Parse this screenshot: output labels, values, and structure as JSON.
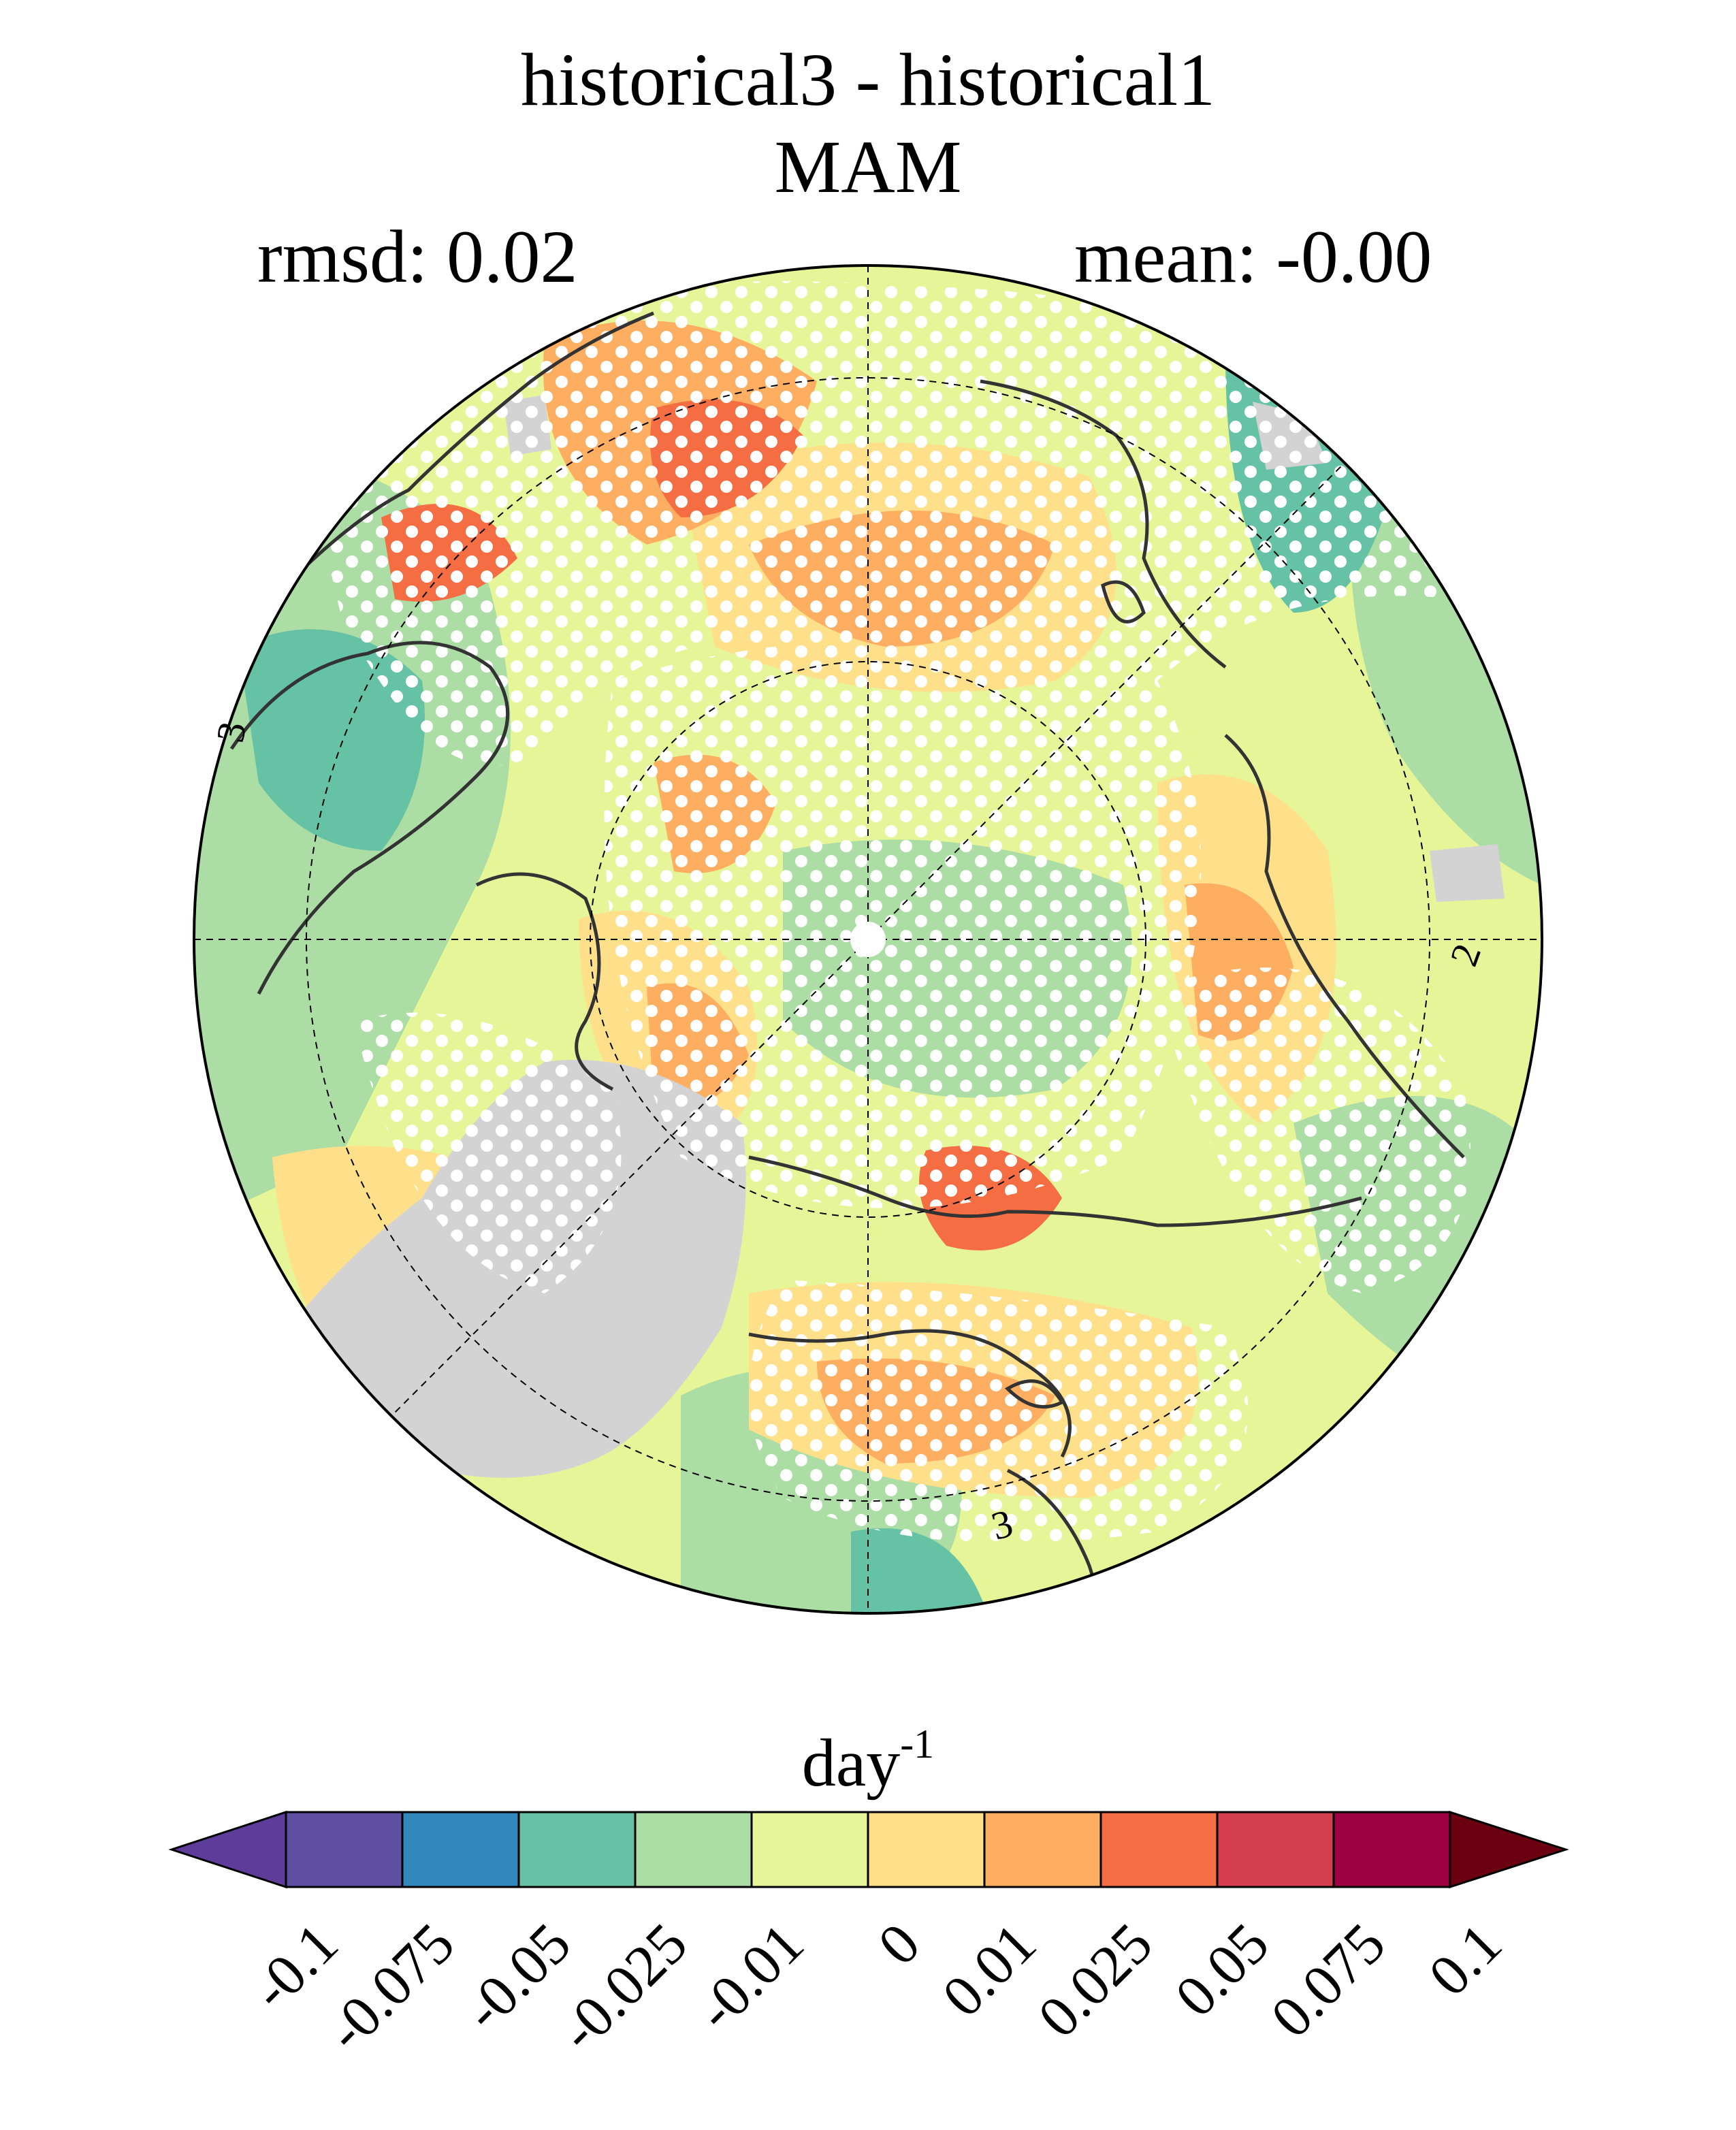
{
  "title": "historical3 - historical1",
  "season": "MAM",
  "rmsd_label": "rmsd: 0.02",
  "mean_label": "mean: -0.00",
  "colorbar": {
    "units": "day",
    "units_exponent": "-1",
    "ticks": [
      "-0.1",
      "-0.075",
      "-0.05",
      "-0.025",
      "-0.01",
      "0",
      "0.01",
      "0.025",
      "0.05",
      "0.075",
      "0.1"
    ],
    "colors": [
      "#5e3c99",
      "#5e4fa2",
      "#3288bd",
      "#66c2a5",
      "#abdda4",
      "#e6f598",
      "#fee08b",
      "#fdae61",
      "#f46d43",
      "#d53e4f",
      "#9e0142",
      "#6a0010"
    ]
  },
  "map": {
    "projection": "north polar stereographic",
    "missing_color": "#d3d3d3",
    "stipple_color": "#ffffff",
    "contour_labels": [
      "3",
      "2",
      "3"
    ]
  }
}
